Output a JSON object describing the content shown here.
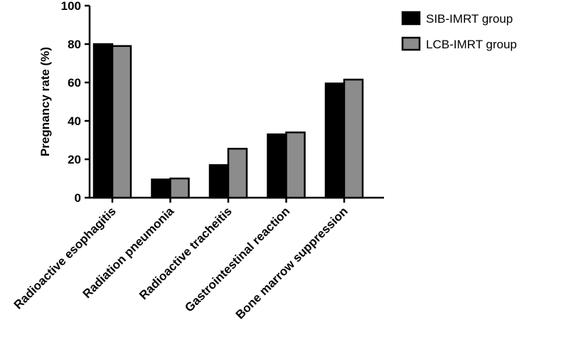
{
  "chart_data": {
    "type": "bar",
    "title": "",
    "xlabel": "",
    "ylabel": "Pregnancy rate (%)",
    "ylim": [
      0,
      100
    ],
    "yticks": [
      0,
      20,
      40,
      60,
      80,
      100
    ],
    "grid": false,
    "legend_position": "top-right",
    "categories": [
      "Radioactive esophagitis",
      "Radiation pneumonia",
      "Radioactive tracheitis",
      "Gastrointestinal reaction",
      "Bone marrow suppression"
    ],
    "series": [
      {
        "name": "SIB-IMRT group",
        "color": "#000000",
        "values": [
          80,
          9.5,
          17,
          33,
          59.5
        ]
      },
      {
        "name": "LCB-IMRT group",
        "color": "#8c8c8c",
        "values": [
          79,
          10,
          25.5,
          34,
          61.5
        ]
      }
    ]
  }
}
